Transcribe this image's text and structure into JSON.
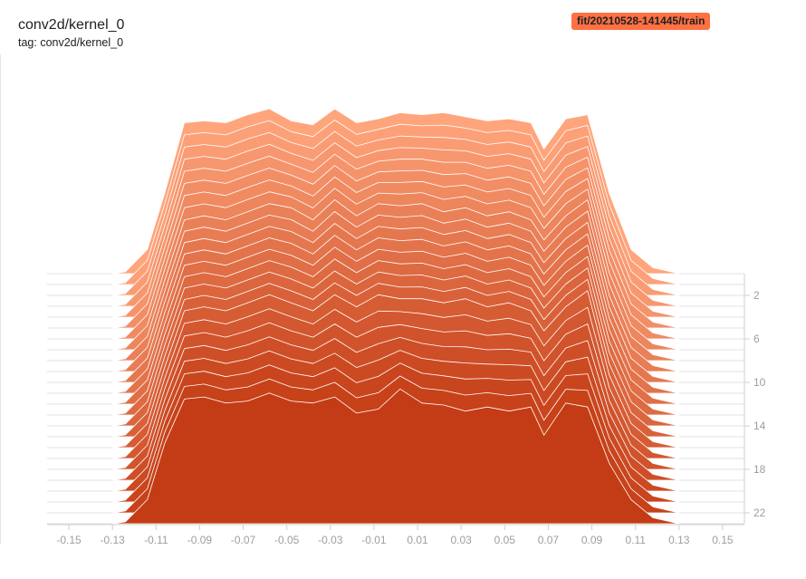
{
  "header": {
    "title": "conv2d/kernel_0",
    "tag": "tag: conv2d/kernel_0",
    "run_badge": "fit/20210528-141445/train",
    "run_color": "#ff7043"
  },
  "chart_data": {
    "type": "area",
    "subtype": "histogram-offset",
    "xlim": [
      -0.16,
      0.16
    ],
    "x_ticks": [
      -0.15,
      -0.13,
      -0.11,
      -0.09,
      -0.07,
      -0.05,
      -0.03,
      -0.01,
      0.01,
      0.03,
      0.05,
      0.07,
      0.09,
      0.11,
      0.13,
      0.15
    ],
    "x_tick_labels": [
      "-0.15",
      "-0.13",
      "-0.11",
      "-0.09",
      "-0.07",
      "-0.05",
      "-0.03",
      "-0.01",
      "0.01",
      "0.03",
      "0.05",
      "0.07",
      "0.09",
      "0.11",
      "0.13",
      "0.15"
    ],
    "steps": [
      0,
      1,
      2,
      3,
      4,
      5,
      6,
      7,
      8,
      9,
      10,
      11,
      12,
      13,
      14,
      15,
      16,
      17,
      18,
      19,
      20,
      21,
      22,
      23
    ],
    "step_ticks": [
      2,
      6,
      10,
      14,
      18,
      22
    ],
    "step_tick_labels": [
      "2",
      "6",
      "10",
      "14",
      "18",
      "22"
    ],
    "color_oldest": "#ffa57c",
    "color_newest": "#c43c15",
    "stroke_color": "#ffffff",
    "bins_x": [
      -0.13,
      -0.124,
      -0.114,
      -0.106,
      -0.097,
      -0.088,
      -0.078,
      -0.068,
      -0.058,
      -0.048,
      -0.038,
      -0.028,
      -0.018,
      -0.008,
      0.002,
      0.012,
      0.022,
      0.032,
      0.042,
      0.052,
      0.062,
      0.068,
      0.078,
      0.088,
      0.098,
      0.108,
      0.118,
      0.13
    ],
    "histograms": {
      "0": [
        0,
        1,
        12,
        40,
        75,
        76,
        75,
        79,
        82,
        76,
        74,
        82,
        75,
        77,
        80,
        79,
        80,
        78,
        76,
        77,
        75,
        62,
        77,
        79,
        40,
        12,
        3,
        0
      ],
      "8": [
        0,
        1,
        12,
        40,
        70,
        72,
        70,
        74,
        78,
        76,
        70,
        80,
        72,
        78,
        77,
        78,
        74,
        76,
        72,
        74,
        70,
        60,
        72,
        80,
        38,
        12,
        3,
        0
      ],
      "16": [
        0,
        1,
        12,
        40,
        68,
        70,
        68,
        72,
        76,
        72,
        68,
        76,
        70,
        76,
        74,
        74,
        72,
        74,
        70,
        72,
        68,
        58,
        70,
        78,
        36,
        12,
        3,
        0
      ],
      "23": [
        0,
        1,
        12,
        40,
        62,
        63,
        60,
        61,
        65,
        61,
        60,
        63,
        55,
        57,
        67,
        60,
        59,
        56,
        58,
        56,
        58,
        44,
        60,
        58,
        30,
        12,
        3,
        0
      ]
    }
  }
}
